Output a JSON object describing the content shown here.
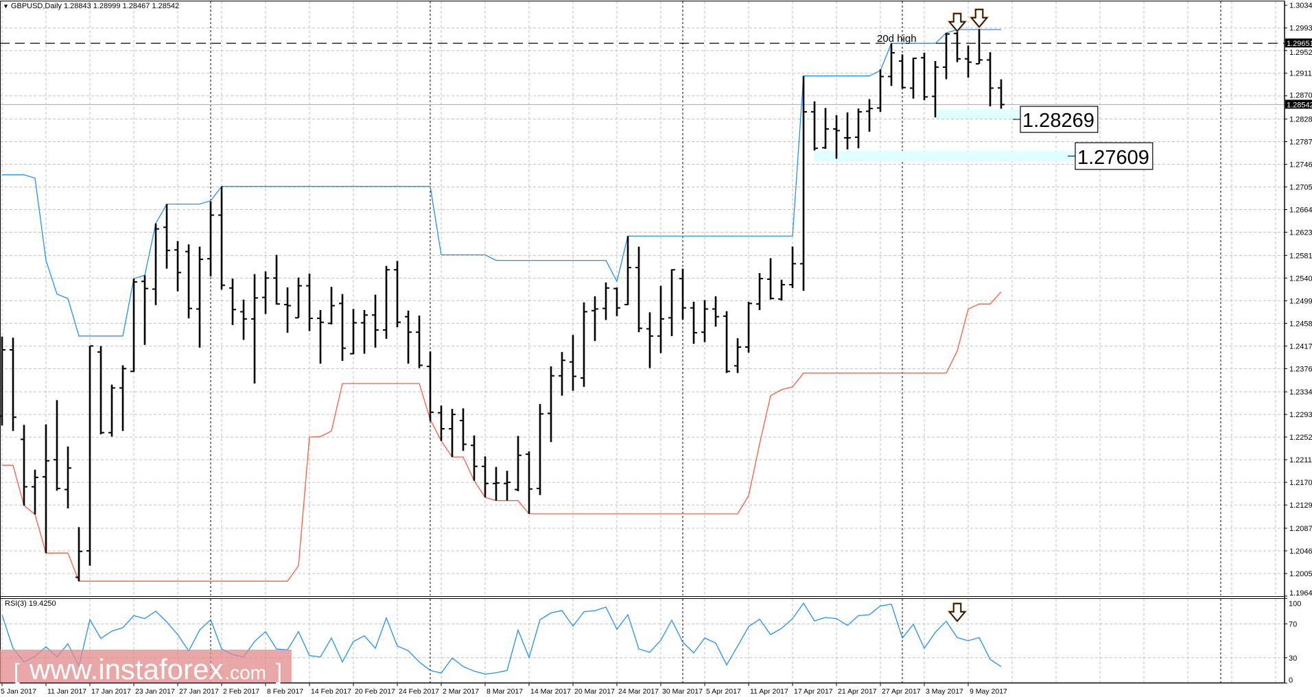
{
  "header": {
    "menu_icon": "triangle-down-icon",
    "symbol": "GBPUSD,Daily",
    "ohlc": "1.28843 1.28999 1.28467 1.28542"
  },
  "rsi_panel": {
    "label": "RSI(3) 19.4250"
  },
  "annotations": {
    "high_label": "20d high",
    "level1": "1.28269",
    "level2": "1.27609",
    "arrow_icon": "hollow-down-arrow-icon"
  },
  "price_markers": {
    "level_line": "1.29651",
    "bid": "1.28542"
  },
  "watermark": {
    "open": "[",
    "text": "www.instaforex",
    "suffix": ".com",
    "close": "]"
  },
  "colors": {
    "upper_channel": "#1e90ff",
    "lower_channel": "#ff5a3c",
    "rsi": "#1e90ff",
    "zone": "#e0ffff",
    "bars": "#000000",
    "watermark": "#e38a8a"
  },
  "chart_data": {
    "type": "ohlc",
    "grid": true,
    "price_ylim": [
      1.1964,
      1.3034
    ],
    "rsi_ylim": [
      0,
      100
    ],
    "y_ticks": [
      "1.30340",
      "1.29930",
      "1.29520",
      "1.29110",
      "1.28700",
      "1.28280",
      "1.27870",
      "1.27460",
      "1.27050",
      "1.26640",
      "1.26230",
      "1.25810",
      "1.25400",
      "1.24990",
      "1.24580",
      "1.24170",
      "1.23760",
      "1.23340",
      "1.22930",
      "1.22520",
      "1.22110",
      "1.21700",
      "1.21290",
      "1.20870",
      "1.20460",
      "1.20050",
      "1.19640"
    ],
    "rsi_ticks": [
      "100",
      "70",
      "30",
      "0"
    ],
    "x_ticks": [
      "5 Jan 2017",
      "11 Jan 2017",
      "17 Jan 2017",
      "23 Jan 2017",
      "27 Jan 2017",
      "2 Feb 2017",
      "8 Feb 2017",
      "14 Feb 2017",
      "20 Feb 2017",
      "24 Feb 2017",
      "2 Mar 2017",
      "8 Mar 2017",
      "14 Mar 2017",
      "20 Mar 2017",
      "24 Mar 2017",
      "30 Mar 2017",
      "5 Apr 2017",
      "11 Apr 2017",
      "17 Apr 2017",
      "21 Apr 2017",
      "27 Apr 2017",
      "3 May 2017",
      "9 May 2017"
    ],
    "open": [
      1.229,
      1.241,
      1.2248,
      1.2162,
      1.218,
      1.2211,
      1.2157,
      1.1998,
      1.2046,
      1.2406,
      1.226,
      1.2341,
      1.2371,
      1.2534,
      1.252,
      1.2632,
      1.2591,
      1.2588,
      1.2484,
      1.2575,
      1.2654,
      1.2522,
      1.2479,
      1.2466,
      1.2505,
      1.254,
      1.2492,
      1.2468,
      1.2526,
      1.2467,
      1.2458,
      1.2494,
      1.2403,
      1.2459,
      1.2473,
      1.2446,
      1.2555,
      1.247,
      1.2442,
      1.238,
      1.2296,
      1.2267,
      1.2282,
      1.2237,
      1.2199,
      1.2168,
      1.2168,
      1.2157,
      1.2221,
      1.2159,
      1.2295,
      1.2363,
      1.2388,
      1.2359,
      1.2481,
      1.2485,
      1.2521,
      1.2492,
      1.2559,
      1.2448,
      1.2435,
      1.2468,
      1.2539,
      1.2486,
      1.2442,
      1.2484,
      1.2471,
      1.2381,
      1.2415,
      1.2493,
      1.2538,
      1.2502,
      1.2528,
      1.2566,
      1.2841,
      1.2776,
      1.281,
      1.2794,
      1.2795,
      1.2842,
      1.2848,
      1.2905,
      1.2933,
      1.2884,
      1.2939,
      1.2869,
      1.2922,
      1.2983,
      1.2937,
      1.2928,
      1.2935,
      1.28843
    ],
    "high": [
      1.2434,
      1.2432,
      1.2274,
      1.2193,
      1.2275,
      1.2319,
      1.2235,
      1.2089,
      1.2417,
      1.2417,
      1.2347,
      1.2382,
      1.2539,
      1.2545,
      1.2639,
      1.2674,
      1.2607,
      1.2601,
      1.2597,
      1.2679,
      1.2706,
      1.2539,
      1.2501,
      1.2547,
      1.2552,
      1.2582,
      1.2523,
      1.2541,
      1.2548,
      1.2482,
      1.2524,
      1.2511,
      1.2484,
      1.2482,
      1.251,
      1.2562,
      1.2571,
      1.2481,
      1.2472,
      1.2407,
      1.2309,
      1.2303,
      1.2304,
      1.2255,
      1.2217,
      1.2198,
      1.2191,
      1.2254,
      1.2226,
      1.2312,
      1.238,
      1.2406,
      1.2437,
      1.2496,
      1.2507,
      1.2532,
      1.2523,
      1.2616,
      1.2597,
      1.2478,
      1.2526,
      1.2556,
      1.2557,
      1.2497,
      1.25,
      1.2507,
      1.248,
      1.2431,
      1.2497,
      1.2549,
      1.2576,
      1.2537,
      1.2597,
      1.2906,
      1.286,
      1.2848,
      1.2835,
      1.284,
      1.2847,
      1.2864,
      1.2918,
      1.2965,
      1.2945,
      1.2939,
      1.2948,
      1.2933,
      1.2984,
      1.2988,
      1.2961,
      1.2991,
      1.2949,
      1.28999
    ],
    "low": [
      1.2273,
      1.2263,
      1.2128,
      1.2112,
      1.2042,
      1.2155,
      1.2123,
      1.1991,
      1.2019,
      1.2257,
      1.2253,
      1.2263,
      1.237,
      1.2419,
      1.2491,
      1.2557,
      1.2516,
      1.2467,
      1.2414,
      1.2543,
      1.2519,
      1.2455,
      1.2428,
      1.2349,
      1.2475,
      1.2492,
      1.2441,
      1.2468,
      1.2444,
      1.2385,
      1.2456,
      1.239,
      1.2402,
      1.2403,
      1.2414,
      1.243,
      1.2451,
      1.2385,
      1.2377,
      1.2281,
      1.2245,
      1.2216,
      1.2227,
      1.2173,
      1.2143,
      1.2137,
      1.2137,
      1.2154,
      1.2113,
      1.2147,
      1.2243,
      1.2327,
      1.2336,
      1.2343,
      1.2426,
      1.2464,
      1.2471,
      1.2491,
      1.2442,
      1.2377,
      1.2404,
      1.2435,
      1.2465,
      1.2421,
      1.2424,
      1.2452,
      1.2368,
      1.2368,
      1.2405,
      1.2482,
      1.2501,
      1.2499,
      1.2522,
      1.2517,
      1.2771,
      1.2774,
      1.2756,
      1.2773,
      1.2775,
      1.2805,
      1.2841,
      1.2888,
      1.2883,
      1.2865,
      1.2862,
      1.2831,
      1.29,
      1.2931,
      1.2903,
      1.2928,
      1.2851,
      1.28467
    ],
    "close": [
      1.241,
      1.2288,
      1.2162,
      1.2179,
      1.2209,
      1.2159,
      1.2196,
      1.2045,
      1.2417,
      1.226,
      1.2341,
      1.2376,
      1.2533,
      1.2521,
      1.2629,
      1.259,
      1.255,
      1.2485,
      1.2574,
      1.2654,
      1.2527,
      1.2483,
      1.2466,
      1.2504,
      1.254,
      1.2493,
      1.249,
      1.2526,
      1.2467,
      1.246,
      1.249,
      1.2413,
      1.2459,
      1.2473,
      1.2446,
      1.2555,
      1.246,
      1.2442,
      1.2382,
      1.2297,
      1.2267,
      1.2293,
      1.2239,
      1.2199,
      1.2168,
      1.2169,
      1.217,
      1.2219,
      1.2158,
      1.2294,
      1.2363,
      1.2391,
      1.2362,
      1.2479,
      1.2484,
      1.2522,
      1.2486,
      1.2559,
      1.2449,
      1.2435,
      1.2466,
      1.2555,
      1.2486,
      1.2441,
      1.2484,
      1.247,
      1.2371,
      1.2415,
      1.2494,
      1.2539,
      1.2503,
      1.2528,
      1.2566,
      1.2841,
      1.2775,
      1.281,
      1.2807,
      1.2794,
      1.2841,
      1.2847,
      1.2905,
      1.2948,
      1.2885,
      1.2938,
      1.2868,
      1.2922,
      1.2982,
      1.2937,
      1.2931,
      1.2935,
      1.2884,
      1.28542
    ],
    "upper_channel": [
      1.2727,
      1.2727,
      1.2727,
      1.2721,
      1.2572,
      1.2511,
      1.2503,
      1.2435,
      1.2435,
      1.2435,
      1.2435,
      1.2435,
      1.2539,
      1.2545,
      1.2639,
      1.2674,
      1.2674,
      1.2674,
      1.2674,
      1.268,
      1.2706,
      1.2706,
      1.2706,
      1.2706,
      1.2706,
      1.2706,
      1.2706,
      1.2706,
      1.2706,
      1.2706,
      1.2706,
      1.2706,
      1.2706,
      1.2706,
      1.2706,
      1.2706,
      1.2706,
      1.2706,
      1.2706,
      1.2706,
      1.2582,
      1.2582,
      1.2582,
      1.2582,
      1.2582,
      1.2572,
      1.2572,
      1.2572,
      1.2572,
      1.2572,
      1.2572,
      1.2572,
      1.2572,
      1.2572,
      1.2572,
      1.2572,
      1.2534,
      1.2616,
      1.2616,
      1.2616,
      1.2616,
      1.2616,
      1.2616,
      1.2616,
      1.2616,
      1.2616,
      1.2616,
      1.2616,
      1.2616,
      1.2616,
      1.2616,
      1.2616,
      1.2616,
      1.2906,
      1.2906,
      1.2906,
      1.2906,
      1.2906,
      1.2906,
      1.2906,
      1.2916,
      1.2965,
      1.2965,
      1.2965,
      1.2965,
      1.2965,
      1.2984,
      1.299,
      1.299,
      1.299,
      1.299,
      1.299
    ],
    "lower_channel": [
      1.2201,
      1.2201,
      1.2128,
      1.2112,
      1.2042,
      1.2042,
      1.2042,
      1.1991,
      1.1991,
      1.1991,
      1.1991,
      1.1991,
      1.1991,
      1.1991,
      1.1991,
      1.1991,
      1.1991,
      1.1991,
      1.1991,
      1.1991,
      1.1991,
      1.1991,
      1.1991,
      1.1991,
      1.1991,
      1.1991,
      1.1991,
      1.2019,
      1.2252,
      1.2253,
      1.2263,
      1.2349,
      1.2349,
      1.2349,
      1.2349,
      1.2349,
      1.2349,
      1.2349,
      1.2349,
      1.2284,
      1.2245,
      1.2216,
      1.2216,
      1.2173,
      1.2143,
      1.2137,
      1.2137,
      1.2137,
      1.2113,
      1.2113,
      1.2113,
      1.2113,
      1.2113,
      1.2113,
      1.2113,
      1.2113,
      1.2113,
      1.2113,
      1.2113,
      1.2113,
      1.2113,
      1.2113,
      1.2113,
      1.2113,
      1.2113,
      1.2113,
      1.2113,
      1.2113,
      1.2146,
      1.224,
      1.2327,
      1.2338,
      1.2343,
      1.2368,
      1.2368,
      1.2368,
      1.2368,
      1.2368,
      1.2368,
      1.2368,
      1.2368,
      1.2368,
      1.2368,
      1.2368,
      1.2368,
      1.2368,
      1.2368,
      1.2408,
      1.2484,
      1.2493,
      1.2493,
      1.2515
    ],
    "rsi": [
      80.3,
      41.1,
      25.0,
      31.7,
      42.9,
      30.9,
      46.5,
      20.1,
      74.9,
      52.7,
      61.4,
      65.4,
      79.7,
      76.2,
      84.9,
      72.2,
      57.3,
      37.9,
      62.7,
      74.9,
      40.3,
      33.8,
      30.9,
      49.2,
      60.8,
      40.3,
      39.3,
      60.8,
      32.5,
      30.9,
      53.3,
      25.0,
      49.2,
      55.9,
      41.1,
      77.0,
      43.8,
      38.4,
      25.0,
      15.0,
      12.0,
      29.6,
      19.6,
      14.2,
      10.7,
      12.3,
      15.0,
      62.7,
      30.3,
      74.9,
      82.9,
      85.6,
      67.3,
      84.3,
      85.6,
      89.7,
      63.5,
      80.8,
      40.3,
      36.5,
      50.6,
      74.3,
      48.4,
      35.7,
      53.3,
      47.3,
      21.5,
      43.8,
      66.8,
      75.4,
      57.3,
      64.6,
      76.2,
      94.3,
      73.5,
      77.6,
      76.2,
      68.1,
      79.7,
      80.8,
      91.1,
      93.2,
      53.3,
      69.5,
      41.1,
      60.0,
      73.0,
      53.8,
      50.0,
      53.8,
      28.2,
      19.43
    ]
  }
}
